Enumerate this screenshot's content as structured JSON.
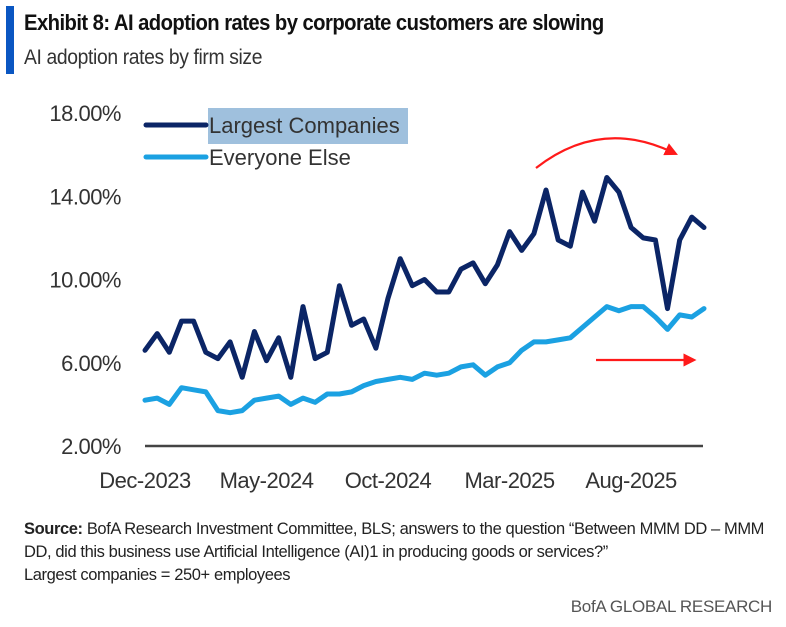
{
  "header": {
    "title": "Exhibit 8: AI adoption rates by corporate customers are slowing",
    "subtitle": "AI adoption rates by firm size"
  },
  "colors": {
    "accent": "#0a56c2",
    "largest": "#0b2566",
    "everyone": "#1ba1e2",
    "arrow": "#ff1a1a",
    "legend_highlight": "#9fc0dd",
    "axis": "#444444"
  },
  "chart_data": {
    "type": "line",
    "title": "AI adoption rates by firm size",
    "xlabel": "",
    "ylabel": "",
    "ylim": [
      2,
      18
    ],
    "yticks": [
      2,
      6,
      10,
      14,
      18
    ],
    "ytick_labels": [
      "2.00%",
      "6.00%",
      "10.00%",
      "14.00%",
      "18.00%"
    ],
    "x_count": 47,
    "xtick_indices": [
      0,
      10,
      20,
      30,
      40
    ],
    "xtick_labels": [
      "Dec-2023",
      "May-2024",
      "Oct-2024",
      "Mar-2025",
      "Aug-2025"
    ],
    "grid": false,
    "legend_position": "top-left",
    "series": [
      {
        "name": "Largest Companies",
        "values": [
          6.6,
          7.4,
          6.5,
          8.0,
          8.0,
          6.5,
          6.2,
          7.0,
          5.3,
          7.5,
          6.1,
          7.2,
          5.3,
          8.7,
          6.2,
          6.5,
          9.7,
          7.8,
          8.1,
          6.7,
          9.1,
          11.0,
          9.7,
          10.0,
          9.4,
          9.4,
          10.5,
          10.8,
          9.8,
          10.7,
          12.3,
          11.4,
          12.2,
          14.3,
          11.9,
          11.6,
          14.2,
          12.8,
          14.9,
          14.2,
          12.5,
          12.0,
          11.9,
          8.6,
          11.9,
          13.0,
          12.5
        ]
      },
      {
        "name": "Everyone Else",
        "values": [
          4.2,
          4.3,
          4.0,
          4.8,
          4.7,
          4.6,
          3.7,
          3.6,
          3.7,
          4.2,
          4.3,
          4.4,
          4.0,
          4.3,
          4.1,
          4.5,
          4.5,
          4.6,
          4.9,
          5.1,
          5.2,
          5.3,
          5.2,
          5.5,
          5.4,
          5.5,
          5.8,
          5.9,
          5.4,
          5.8,
          6.0,
          6.6,
          7.0,
          7.0,
          7.1,
          7.2,
          7.7,
          8.2,
          8.7,
          8.5,
          8.7,
          8.7,
          8.2,
          7.6,
          8.3,
          8.2,
          8.6
        ]
      }
    ],
    "annotations": [
      {
        "type": "curved-arrow",
        "meaning": "slowing trend for Largest Companies",
        "from_index": 32,
        "to_index": 44
      },
      {
        "type": "straight-arrow",
        "meaning": "flat trend for Everyone Else",
        "from_index": 37,
        "to_index": 45
      }
    ]
  },
  "footer": {
    "source_label": "Source:",
    "source_text": " BofA Research Investment Committee, BLS; answers to the question “Between MMM DD – MMM DD, did this business use Artificial Intelligence (AI)1 in producing goods or services?”",
    "note": "Largest companies  = 250+ employees",
    "brand": "BofA GLOBAL RESEARCH"
  }
}
